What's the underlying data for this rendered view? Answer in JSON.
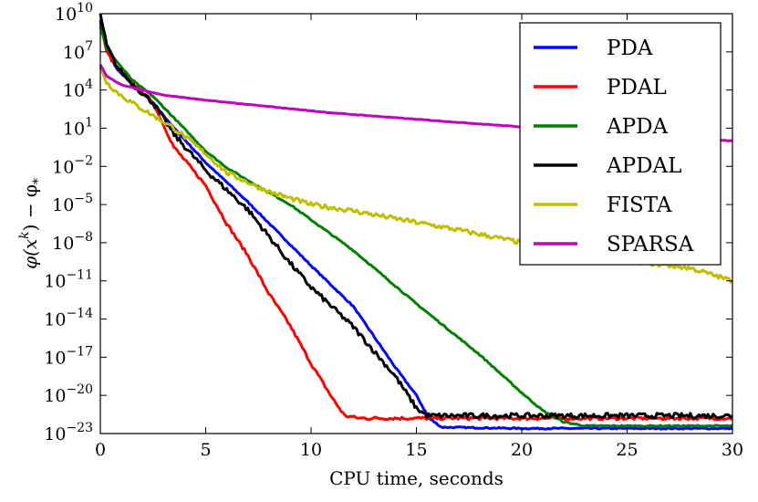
{
  "chart_data": {
    "type": "line",
    "title": "",
    "xlabel": "CPU time, seconds",
    "ylabel": "φ(x^k) − φ_*",
    "xlim": [
      0,
      30
    ],
    "ylim_log10": [
      -23,
      10
    ],
    "yscale": "log",
    "x_ticks": [
      0,
      5,
      10,
      15,
      20,
      25,
      30
    ],
    "x_tick_labels": [
      "0",
      "5",
      "10",
      "15",
      "20",
      "25",
      "30"
    ],
    "y_tick_exponents": [
      10,
      7,
      4,
      1,
      -2,
      -5,
      -8,
      -11,
      -14,
      -17,
      -20,
      -23
    ],
    "y_tick_labels": [
      "10^10",
      "10^7",
      "10^4",
      "10^1",
      "10^-2",
      "10^-5",
      "10^-8",
      "10^-11",
      "10^-14",
      "10^-17",
      "10^-20",
      "10^-23"
    ],
    "grid": false,
    "legend_position": "top-right",
    "series": [
      {
        "name": "PDA",
        "color": "#0000ff",
        "points_log10": [
          [
            0,
            9.5
          ],
          [
            0.3,
            7.2
          ],
          [
            0.8,
            5.6
          ],
          [
            1.5,
            4.5
          ],
          [
            2.5,
            3.0
          ],
          [
            3.5,
            1.0
          ],
          [
            5,
            -1.7
          ],
          [
            7,
            -4.8
          ],
          [
            10,
            -9.8
          ],
          [
            12,
            -13.0
          ],
          [
            14,
            -17.8
          ],
          [
            15,
            -20.0
          ],
          [
            15.6,
            -21.8
          ],
          [
            16.2,
            -22.5
          ],
          [
            20,
            -22.6
          ],
          [
            30,
            -22.6
          ]
        ]
      },
      {
        "name": "PDAL",
        "color": "#ff0000",
        "points_log10": [
          [
            0,
            9.3
          ],
          [
            0.3,
            7.0
          ],
          [
            0.8,
            5.7
          ],
          [
            1.5,
            4.6
          ],
          [
            2.5,
            3.0
          ],
          [
            3.5,
            -0.5
          ],
          [
            5,
            -3.5
          ],
          [
            6,
            -6.5
          ],
          [
            7,
            -9.0
          ],
          [
            8,
            -12.0
          ],
          [
            9,
            -14.5
          ],
          [
            10,
            -17.5
          ],
          [
            11,
            -20.2
          ],
          [
            11.6,
            -21.6
          ],
          [
            12.3,
            -21.8
          ],
          [
            20,
            -21.8
          ],
          [
            30,
            -21.8
          ]
        ]
      },
      {
        "name": "APDA",
        "color": "#008000",
        "points_log10": [
          [
            0,
            9.0
          ],
          [
            0.3,
            7.3
          ],
          [
            0.8,
            6.2
          ],
          [
            1.5,
            4.8
          ],
          [
            2.5,
            3.5
          ],
          [
            3.5,
            1.8
          ],
          [
            5,
            -0.8
          ],
          [
            6,
            -2.1
          ],
          [
            7,
            -3.1
          ],
          [
            9,
            -5.0
          ],
          [
            12,
            -8.6
          ],
          [
            15,
            -12.8
          ],
          [
            18,
            -16.8
          ],
          [
            20,
            -19.8
          ],
          [
            21,
            -21.2
          ],
          [
            22,
            -22.1
          ],
          [
            23,
            -22.4
          ],
          [
            25,
            -22.4
          ],
          [
            30,
            -22.4
          ]
        ]
      },
      {
        "name": "APDAL",
        "color": "#000000",
        "points_log10": [
          [
            0,
            10.0
          ],
          [
            0.3,
            7.5
          ],
          [
            0.8,
            5.8
          ],
          [
            1.5,
            4.5
          ],
          [
            2.5,
            3.0
          ],
          [
            3.5,
            0.5
          ],
          [
            5,
            -2.3
          ],
          [
            7,
            -5.4
          ],
          [
            9,
            -9.6
          ],
          [
            10,
            -11.5
          ],
          [
            12,
            -14.6
          ],
          [
            14,
            -18.5
          ],
          [
            15,
            -21.0
          ],
          [
            15.5,
            -21.6
          ],
          [
            20,
            -21.6
          ],
          [
            30,
            -21.6
          ]
        ]
      },
      {
        "name": "FISTA",
        "color": "#bfbf00",
        "points_log10": [
          [
            0,
            5.8
          ],
          [
            0.3,
            4.6
          ],
          [
            0.8,
            3.8
          ],
          [
            1.5,
            3.0
          ],
          [
            2.5,
            2.0
          ],
          [
            3.5,
            1.0
          ],
          [
            5,
            -1.0
          ],
          [
            6,
            -2.5
          ],
          [
            8,
            -4.0
          ],
          [
            10,
            -5.0
          ],
          [
            12,
            -5.5
          ],
          [
            15,
            -6.4
          ],
          [
            17,
            -7.0
          ],
          [
            20,
            -8.0
          ],
          [
            22,
            -8.8
          ],
          [
            25,
            -9.4
          ],
          [
            28,
            -10.0
          ],
          [
            30,
            -11.0
          ]
        ]
      },
      {
        "name": "SPARSA",
        "color": "#bf00bf",
        "points_log10": [
          [
            0,
            6.0
          ],
          [
            0.3,
            5.1
          ],
          [
            1,
            4.4
          ],
          [
            3,
            3.6
          ],
          [
            5,
            3.2
          ],
          [
            8,
            2.7
          ],
          [
            11,
            2.2
          ],
          [
            15,
            1.7
          ],
          [
            20,
            1.1
          ],
          [
            25,
            0.5
          ],
          [
            30,
            0.0
          ]
        ]
      }
    ]
  }
}
